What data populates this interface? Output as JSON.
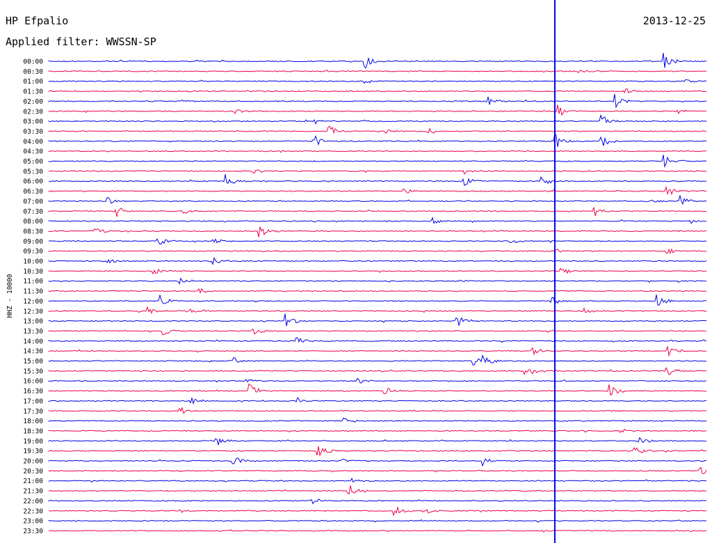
{
  "header": {
    "station": "HP Efpalio",
    "date": "2013-12-25",
    "filter": "Applied filter: WWSSN-SP"
  },
  "y_axis_label": "HHZ - 10000",
  "chart_data": {
    "type": "helicorder",
    "title": "HP Efpalio",
    "date": "2013-12-25",
    "filter": "WWSSN-SP",
    "channel": "HHZ - 10000",
    "row_minutes": 30,
    "grid": false,
    "colors": {
      "blue": "#0000e6",
      "red": "#ee0044"
    },
    "rows": [
      {
        "t": "00:00",
        "c": "blue",
        "events": [
          [
            0.48,
            1.0
          ],
          [
            0.935,
            1.0
          ]
        ]
      },
      {
        "t": "00:30",
        "c": "red",
        "events": [
          [
            0.805,
            0.3
          ]
        ]
      },
      {
        "t": "01:00",
        "c": "blue",
        "events": [
          [
            0.48,
            0.3
          ],
          [
            0.965,
            0.3
          ]
        ]
      },
      {
        "t": "01:30",
        "c": "red",
        "events": [
          [
            0.875,
            0.4
          ]
        ]
      },
      {
        "t": "02:00",
        "c": "blue",
        "events": [
          [
            0.67,
            0.6
          ],
          [
            0.86,
            1.0
          ],
          [
            0.2,
            0.2
          ]
        ]
      },
      {
        "t": "02:30",
        "c": "red",
        "events": [
          [
            0.285,
            0.3
          ],
          [
            0.775,
            0.9
          ],
          [
            0.955,
            0.3
          ]
        ]
      },
      {
        "t": "03:00",
        "c": "blue",
        "events": [
          [
            0.405,
            0.3
          ],
          [
            0.84,
            1.0
          ]
        ]
      },
      {
        "t": "03:30",
        "c": "red",
        "events": [
          [
            0.425,
            0.8
          ],
          [
            0.51,
            0.3
          ],
          [
            0.575,
            0.6
          ]
        ]
      },
      {
        "t": "04:00",
        "c": "blue",
        "events": [
          [
            0.405,
            0.6
          ],
          [
            0.77,
            1.0
          ],
          [
            0.84,
            0.8
          ]
        ]
      },
      {
        "t": "04:30",
        "c": "red",
        "events": [
          [
            0.355,
            0.2
          ]
        ]
      },
      {
        "t": "05:00",
        "c": "blue",
        "events": [
          [
            0.935,
            0.9
          ]
        ]
      },
      {
        "t": "05:30",
        "c": "red",
        "events": [
          [
            0.31,
            0.3
          ],
          [
            0.63,
            0.4
          ]
        ]
      },
      {
        "t": "06:00",
        "c": "blue",
        "events": [
          [
            0.27,
            0.9
          ],
          [
            0.63,
            0.8
          ],
          [
            0.75,
            0.7
          ]
        ]
      },
      {
        "t": "06:30",
        "c": "red",
        "events": [
          [
            0.54,
            0.4
          ],
          [
            0.94,
            0.7
          ]
        ]
      },
      {
        "t": "07:00",
        "c": "blue",
        "events": [
          [
            0.09,
            0.5
          ],
          [
            0.905,
            0.6
          ],
          [
            0.96,
            0.6
          ]
        ]
      },
      {
        "t": "07:30",
        "c": "red",
        "events": [
          [
            0.1,
            1.0
          ],
          [
            0.205,
            0.4
          ],
          [
            0.83,
            0.5
          ]
        ]
      },
      {
        "t": "08:00",
        "c": "blue",
        "events": [
          [
            0.58,
            0.6
          ],
          [
            0.975,
            0.3
          ]
        ]
      },
      {
        "t": "08:30",
        "c": "red",
        "events": [
          [
            0.07,
            0.6
          ],
          [
            0.32,
            1.0
          ]
        ]
      },
      {
        "t": "09:00",
        "c": "blue",
        "events": [
          [
            0.165,
            0.7
          ],
          [
            0.25,
            0.5
          ],
          [
            0.7,
            0.4
          ]
        ]
      },
      {
        "t": "09:30",
        "c": "red",
        "events": [
          [
            0.77,
            0.3
          ],
          [
            0.94,
            0.4
          ]
        ]
      },
      {
        "t": "10:00",
        "c": "blue",
        "events": [
          [
            0.085,
            0.4
          ],
          [
            0.25,
            0.5
          ]
        ]
      },
      {
        "t": "10:30",
        "c": "red",
        "events": [
          [
            0.16,
            0.4
          ],
          [
            0.78,
            0.5
          ]
        ]
      },
      {
        "t": "11:00",
        "c": "blue",
        "events": [
          [
            0.2,
            0.4
          ]
        ]
      },
      {
        "t": "11:30",
        "c": "red",
        "events": [
          [
            0.23,
            0.4
          ]
        ]
      },
      {
        "t": "12:00",
        "c": "blue",
        "events": [
          [
            0.17,
            0.9
          ],
          [
            0.925,
            0.8
          ],
          [
            0.765,
            0.5
          ]
        ]
      },
      {
        "t": "12:30",
        "c": "red",
        "events": [
          [
            0.15,
            0.5
          ],
          [
            0.21,
            0.4
          ],
          [
            0.81,
            0.5
          ]
        ]
      },
      {
        "t": "13:00",
        "c": "blue",
        "events": [
          [
            0.36,
            1.0
          ],
          [
            0.62,
            1.0
          ]
        ]
      },
      {
        "t": "13:30",
        "c": "red",
        "events": [
          [
            0.175,
            0.5
          ],
          [
            0.31,
            0.7
          ]
        ]
      },
      {
        "t": "14:00",
        "c": "blue",
        "events": [
          [
            0.375,
            0.6
          ]
        ]
      },
      {
        "t": "14:30",
        "c": "red",
        "events": [
          [
            0.735,
            0.6
          ],
          [
            0.94,
            1.0
          ]
        ]
      },
      {
        "t": "15:00",
        "c": "blue",
        "events": [
          [
            0.28,
            0.7
          ],
          [
            0.645,
            0.7
          ],
          [
            0.66,
            0.8
          ]
        ]
      },
      {
        "t": "15:30",
        "c": "red",
        "events": [
          [
            0.725,
            1.0
          ],
          [
            0.94,
            0.7
          ]
        ]
      },
      {
        "t": "16:00",
        "c": "blue",
        "events": [
          [
            0.295,
            0.5
          ],
          [
            0.47,
            0.5
          ]
        ]
      },
      {
        "t": "16:30",
        "c": "red",
        "events": [
          [
            0.305,
            0.9
          ],
          [
            0.51,
            0.7
          ],
          [
            0.85,
            1.0
          ]
        ]
      },
      {
        "t": "17:00",
        "c": "blue",
        "events": [
          [
            0.215,
            0.5
          ],
          [
            0.375,
            0.5
          ]
        ]
      },
      {
        "t": "17:30",
        "c": "red",
        "events": [
          [
            0.2,
            0.6
          ]
        ]
      },
      {
        "t": "18:00",
        "c": "blue",
        "events": [
          [
            0.45,
            0.5
          ]
        ]
      },
      {
        "t": "18:30",
        "c": "red",
        "events": [
          [
            0.87,
            0.3
          ]
        ]
      },
      {
        "t": "19:00",
        "c": "blue",
        "events": [
          [
            0.255,
            0.6
          ],
          [
            0.895,
            0.6
          ]
        ]
      },
      {
        "t": "19:30",
        "c": "red",
        "events": [
          [
            0.41,
            1.0
          ],
          [
            0.89,
            0.7
          ]
        ]
      },
      {
        "t": "20:00",
        "c": "blue",
        "events": [
          [
            0.28,
            0.6
          ],
          [
            0.445,
            0.4
          ],
          [
            0.66,
            0.6
          ]
        ]
      },
      {
        "t": "20:30",
        "c": "red",
        "events": [
          [
            0.99,
            0.6
          ]
        ]
      },
      {
        "t": "21:00",
        "c": "blue",
        "events": [
          [
            0.46,
            0.4
          ]
        ]
      },
      {
        "t": "21:30",
        "c": "red",
        "events": [
          [
            0.455,
            0.9
          ]
        ]
      },
      {
        "t": "22:00",
        "c": "blue",
        "events": [
          [
            0.4,
            0.5
          ]
        ]
      },
      {
        "t": "22:30",
        "c": "red",
        "events": [
          [
            0.195,
            0.5
          ],
          [
            0.525,
            0.8
          ],
          [
            0.575,
            0.4
          ]
        ]
      },
      {
        "t": "23:00",
        "c": "blue",
        "events": []
      },
      {
        "t": "23:30",
        "c": "red",
        "events": []
      }
    ],
    "marker_x_fraction": 0.7695
  }
}
